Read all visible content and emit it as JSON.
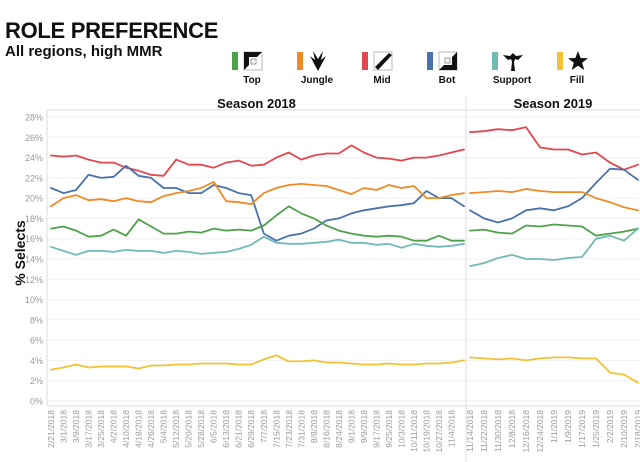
{
  "header": {
    "title": "ROLE PREFERENCE",
    "subtitle": "All regions, high MMR"
  },
  "legend": [
    {
      "role": "Top",
      "color": "#4ea24a",
      "icon": "top-lane-icon"
    },
    {
      "role": "Jungle",
      "color": "#f08a24",
      "icon": "jungle-icon"
    },
    {
      "role": "Mid",
      "color": "#e2474f",
      "icon": "mid-lane-icon"
    },
    {
      "role": "Bot",
      "color": "#4a72aa",
      "icon": "bot-lane-icon"
    },
    {
      "role": "Support",
      "color": "#72bbb5",
      "icon": "support-icon"
    },
    {
      "role": "Fill",
      "color": "#f1c232",
      "icon": "star-icon"
    }
  ],
  "chart_data": {
    "type": "line",
    "title": "ROLE PREFERENCE",
    "subtitle": "All regions, high MMR",
    "xlabel": "",
    "ylabel": "% Selects",
    "ylim": [
      0,
      28
    ],
    "yticks": [
      "0%",
      "2%",
      "4%",
      "6%",
      "8%",
      "10%",
      "12%",
      "14%",
      "16%",
      "18%",
      "20%",
      "22%",
      "24%",
      "26%",
      "28%"
    ],
    "grid": true,
    "legend_position": "top",
    "panels": [
      {
        "name": "Season 2018",
        "x": [
          "2/21/2018",
          "3/1/2018",
          "3/9/2018",
          "3/17/2018",
          "3/25/2018",
          "4/2/2018",
          "4/10/2018",
          "4/18/2018",
          "4/26/2018",
          "5/4/2018",
          "5/12/2018",
          "5/20/2018",
          "5/28/2018",
          "6/5/2018",
          "6/13/2018",
          "6/21/2018",
          "6/29/2018",
          "7/7/2018",
          "7/15/2018",
          "7/23/2018",
          "7/31/2018",
          "8/8/2018",
          "8/16/2018",
          "8/24/2018",
          "9/1/2018",
          "9/9/2018",
          "9/17/2018",
          "9/25/2018",
          "10/3/2018",
          "10/11/2018",
          "10/19/2018",
          "10/27/2018",
          "11/4/2018",
          "11/12/2018"
        ],
        "series": [
          {
            "name": "Mid",
            "values": [
              24.2,
              24.1,
              24.2,
              23.8,
              23.5,
              23.5,
              23.0,
              22.7,
              22.3,
              22.2,
              23.8,
              23.3,
              23.3,
              23.0,
              23.5,
              23.7,
              23.2,
              23.3,
              24.0,
              24.5,
              23.8,
              24.2,
              24.4,
              24.4,
              25.2,
              24.5,
              24.0,
              23.9,
              23.7,
              24.0,
              24.0,
              24.2,
              24.5,
              24.8
            ]
          },
          {
            "name": "Bot",
            "values": [
              21.0,
              20.5,
              20.8,
              22.3,
              22.0,
              22.1,
              23.2,
              22.2,
              22.0,
              21.0,
              21.0,
              20.5,
              20.5,
              21.3,
              21.0,
              20.5,
              20.3,
              16.5,
              15.8,
              16.3,
              16.5,
              17.0,
              17.8,
              18.0,
              18.5,
              18.8,
              19.0,
              19.2,
              19.3,
              19.5,
              20.7,
              20.0,
              20.0,
              19.2
            ]
          },
          {
            "name": "Jungle",
            "values": [
              19.2,
              20.0,
              20.3,
              19.8,
              19.9,
              19.7,
              20.0,
              19.7,
              19.6,
              20.2,
              20.5,
              20.7,
              21.0,
              21.6,
              19.7,
              19.6,
              19.4,
              20.5,
              21.0,
              21.3,
              21.4,
              21.3,
              21.2,
              20.8,
              20.4,
              21.0,
              20.8,
              21.3,
              21.0,
              21.2,
              20.0,
              20.0,
              20.3,
              20.5
            ]
          },
          {
            "name": "Top",
            "values": [
              17.0,
              17.2,
              16.8,
              16.2,
              16.3,
              16.9,
              16.3,
              17.9,
              17.2,
              16.5,
              16.5,
              16.7,
              16.6,
              17.0,
              16.8,
              16.9,
              16.8,
              17.3,
              18.3,
              19.2,
              18.5,
              18.0,
              17.3,
              16.8,
              16.5,
              16.3,
              16.2,
              16.3,
              16.2,
              15.8,
              15.8,
              16.3,
              15.8,
              15.8
            ]
          },
          {
            "name": "Support",
            "values": [
              15.2,
              14.8,
              14.4,
              14.8,
              14.8,
              14.7,
              14.9,
              14.8,
              14.8,
              14.6,
              14.8,
              14.7,
              14.5,
              14.6,
              14.7,
              15.0,
              15.4,
              16.2,
              15.6,
              15.5,
              15.5,
              15.6,
              15.7,
              15.9,
              15.6,
              15.6,
              15.4,
              15.5,
              15.1,
              15.5,
              15.3,
              15.2,
              15.3,
              15.5
            ]
          },
          {
            "name": "Fill",
            "values": [
              3.1,
              3.3,
              3.6,
              3.3,
              3.4,
              3.4,
              3.4,
              3.2,
              3.5,
              3.5,
              3.6,
              3.6,
              3.7,
              3.7,
              3.7,
              3.6,
              3.6,
              4.1,
              4.5,
              3.9,
              3.9,
              4.0,
              3.8,
              3.8,
              3.7,
              3.6,
              3.6,
              3.7,
              3.6,
              3.6,
              3.7,
              3.7,
              3.8,
              4.0
            ]
          }
        ],
        "tick_labels": [
          "2/21/2018",
          "3/1/2018",
          "3/9/2018",
          "3/17/2018",
          "3/25/2018",
          "4/2/2018",
          "4/10/2018",
          "4/18/2018",
          "4/26/2018",
          "5/4/2018",
          "5/12/2018",
          "5/20/2018",
          "5/28/2018",
          "6/5/2018",
          "6/13/2018",
          "6/21/2018",
          "6/29/2018",
          "7/7/2018",
          "7/15/2018",
          "7/23/2018",
          "7/31/2018",
          "8/8/2018",
          "8/16/2018",
          "8/24/2018",
          "9/1/2018",
          "9/9/2018",
          "9/17/2018",
          "9/25/2018",
          "10/3/2018",
          "10/11/2018",
          "10/19/2018",
          "10/27/2018",
          "11/4/2018"
        ]
      },
      {
        "name": "Season 2019",
        "x": [
          "11/14/2018",
          "11/22/2018",
          "11/30/2018",
          "12/8/2018",
          "12/16/2018",
          "12/24/2018",
          "1/1/2019",
          "1/9/2019",
          "1/17/2019",
          "1/25/2019",
          "2/2/2019",
          "2/10/2019",
          "2/18/2019"
        ],
        "series": [
          {
            "name": "Mid",
            "values": [
              26.5,
              26.6,
              26.8,
              26.7,
              27.0,
              25.0,
              24.8,
              24.8,
              24.3,
              24.5,
              23.5,
              22.8,
              23.3
            ]
          },
          {
            "name": "Bot",
            "values": [
              18.8,
              18.0,
              17.6,
              18.0,
              18.8,
              19.0,
              18.8,
              19.2,
              20.0,
              21.5,
              22.9,
              22.8,
              21.8
            ]
          },
          {
            "name": "Jungle",
            "values": [
              20.5,
              20.6,
              20.7,
              20.6,
              20.9,
              20.7,
              20.6,
              20.6,
              20.6,
              20.0,
              19.6,
              19.1,
              18.8
            ]
          },
          {
            "name": "Top",
            "values": [
              16.8,
              16.9,
              16.6,
              16.5,
              17.3,
              17.2,
              17.4,
              17.3,
              17.2,
              16.3,
              16.5,
              16.7,
              17.0
            ]
          },
          {
            "name": "Support",
            "values": [
              13.3,
              13.6,
              14.1,
              14.4,
              14.0,
              14.0,
              13.9,
              14.1,
              14.2,
              16.0,
              16.3,
              15.8,
              17.0
            ]
          },
          {
            "name": "Fill",
            "values": [
              4.3,
              4.2,
              4.1,
              4.2,
              4.0,
              4.2,
              4.3,
              4.3,
              4.2,
              4.2,
              2.8,
              2.6,
              1.8
            ]
          }
        ],
        "tick_labels": [
          "11/14/2018",
          "11/22/2018",
          "11/30/2018",
          "12/8/2018",
          "12/16/2018",
          "12/24/2018",
          "1/1/2019",
          "1/9/2019",
          "1/17/2019",
          "1/25/2019",
          "2/2/2019",
          "2/10/2019",
          "2/18/2019"
        ]
      }
    ]
  }
}
